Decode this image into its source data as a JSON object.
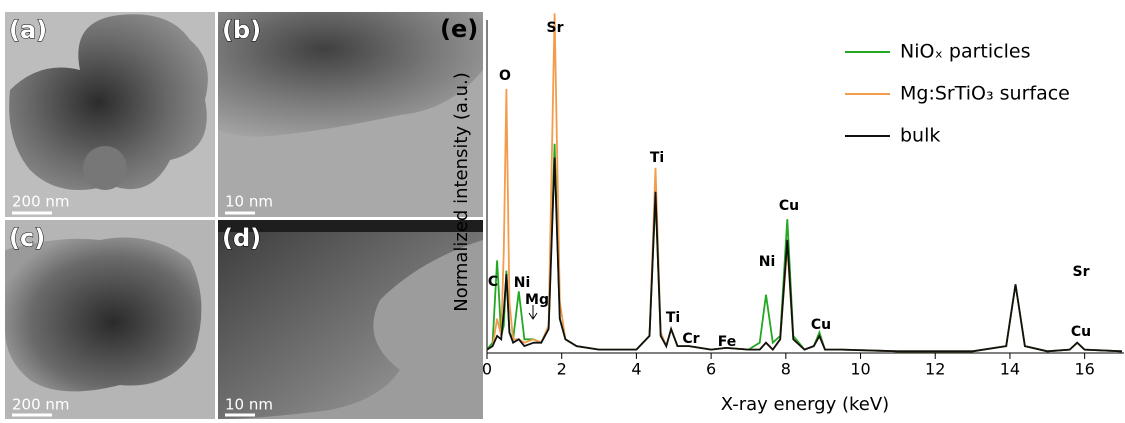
{
  "panels": [
    {
      "label": "(a)",
      "scale_bar": "200 nm"
    },
    {
      "label": "(b)",
      "scale_bar": "10 nm"
    },
    {
      "label": "(c)",
      "scale_bar": "200 nm"
    },
    {
      "label": "(d)",
      "scale_bar": "10 nm"
    }
  ],
  "chart_data": {
    "type": "line",
    "panel_label": "(e)",
    "x_label": "X-ray energy (keV)",
    "y_label": "Normalized intensity (a.u.)",
    "x": [
      0,
      0.15,
      0.27,
      0.38,
      0.45,
      0.52,
      0.6,
      0.7,
      0.85,
      1.0,
      1.25,
      1.45,
      1.65,
      1.81,
      1.95,
      2.1,
      2.4,
      3,
      4,
      4.35,
      4.51,
      4.65,
      4.8,
      4.93,
      5.1,
      5.41,
      6,
      6.4,
      7,
      7.3,
      7.47,
      7.65,
      7.85,
      8.04,
      8.2,
      8.5,
      8.75,
      8.9,
      9.05,
      9.5,
      11,
      13,
      13.9,
      14.15,
      14.4,
      15,
      15.6,
      15.8,
      16,
      17
    ],
    "series": [
      {
        "name": "NiOₓ particles",
        "color": "#22a822",
        "values": [
          0.01,
          0.03,
          0.27,
          0.05,
          0.08,
          0.24,
          0.06,
          0.04,
          0.18,
          0.04,
          0.04,
          0.03,
          0.07,
          0.61,
          0.1,
          0.04,
          0.02,
          0.01,
          0.01,
          0.05,
          0.46,
          0.05,
          0.02,
          0.07,
          0.02,
          0.02,
          0.01,
          0.015,
          0.01,
          0.03,
          0.17,
          0.03,
          0.05,
          0.39,
          0.05,
          0.01,
          0.02,
          0.06,
          0.01,
          0.01,
          0.005,
          0.005,
          0.02,
          0.2,
          0.02,
          0.005,
          0.01,
          0.03,
          0.01,
          0.005
        ]
      },
      {
        "name": "Mg:SrTiO₃ surface",
        "color": "#f39c4b",
        "values": [
          0.01,
          0.02,
          0.1,
          0.05,
          0.3,
          0.77,
          0.15,
          0.04,
          0.04,
          0.03,
          0.04,
          0.03,
          0.08,
          0.99,
          0.15,
          0.04,
          0.02,
          0.01,
          0.01,
          0.05,
          0.54,
          0.06,
          0.02,
          0.07,
          0.02,
          0.02,
          0.01,
          0.015,
          0.01,
          0.01,
          0.03,
          0.01,
          0.04,
          0.31,
          0.04,
          0.01,
          0.02,
          0.05,
          0.01,
          0.01,
          0.005,
          0.005,
          0.02,
          0.2,
          0.02,
          0.005,
          0.01,
          0.03,
          0.01,
          0.005
        ]
      },
      {
        "name": "bulk",
        "color": "#111111",
        "values": [
          0.01,
          0.02,
          0.05,
          0.04,
          0.12,
          0.23,
          0.06,
          0.03,
          0.04,
          0.02,
          0.03,
          0.03,
          0.07,
          0.57,
          0.1,
          0.04,
          0.02,
          0.01,
          0.01,
          0.05,
          0.47,
          0.05,
          0.02,
          0.07,
          0.02,
          0.02,
          0.01,
          0.015,
          0.01,
          0.01,
          0.03,
          0.01,
          0.04,
          0.33,
          0.04,
          0.01,
          0.02,
          0.05,
          0.01,
          0.01,
          0.005,
          0.005,
          0.02,
          0.2,
          0.02,
          0.005,
          0.01,
          0.03,
          0.01,
          0.005
        ]
      }
    ],
    "annotations": [
      "C",
      "O",
      "Sr",
      "Ni",
      "Mg",
      "Ti",
      "Ti",
      "Cr",
      "Fe",
      "Ni",
      "Cu",
      "Cu",
      "Sr",
      "Cu"
    ],
    "xlim": [
      0,
      17
    ],
    "xticks": [
      0,
      2,
      4,
      6,
      8,
      10,
      12,
      14,
      16
    ],
    "ylim": [
      0,
      1
    ],
    "legend": "upper right"
  }
}
